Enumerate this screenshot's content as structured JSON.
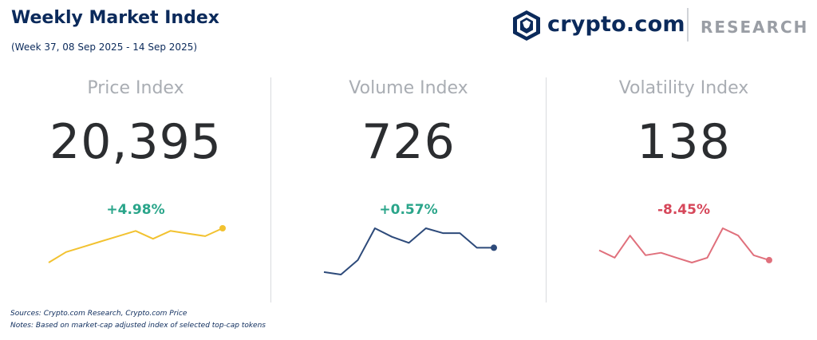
{
  "header": {
    "title": "Weekly Market Index",
    "subtitle": "(Week 37, 08 Sep 2025 - 14 Sep 2025)"
  },
  "brand": {
    "name": "crypto.com",
    "section": "RESEARCH",
    "color": "#0b2a5b",
    "icon": "crypto-com-lion-shield-icon"
  },
  "colors": {
    "positive": "#2aa58a",
    "negative": "#d6475a",
    "label": "#a9adb3",
    "value": "#2b2d30"
  },
  "chart_data": [
    {
      "type": "line",
      "title": "Price Index",
      "value": "20,395",
      "change": "+4.98%",
      "change_direction": "up",
      "color": "#f2c230",
      "values": [
        10,
        14,
        16,
        18,
        20,
        22,
        19,
        22,
        21,
        20,
        23
      ]
    },
    {
      "type": "line",
      "title": "Volume Index",
      "value": "726",
      "change": "+0.57%",
      "change_direction": "up",
      "color": "#2d4a7a",
      "values": [
        4,
        2,
        14,
        40,
        33,
        28,
        40,
        36,
        36,
        24,
        24
      ]
    },
    {
      "type": "line",
      "title": "Volatility Index",
      "value": "138",
      "change": "-8.45%",
      "change_direction": "down",
      "color": "#e0707c",
      "values": [
        20,
        14,
        32,
        16,
        18,
        14,
        10,
        14,
        38,
        32,
        16,
        12
      ]
    }
  ],
  "footer": {
    "sources": "Sources: Crypto.com Research,  Crypto.com Price",
    "notes": "Notes: Based on market-cap adjusted index of selected top-cap tokens"
  }
}
